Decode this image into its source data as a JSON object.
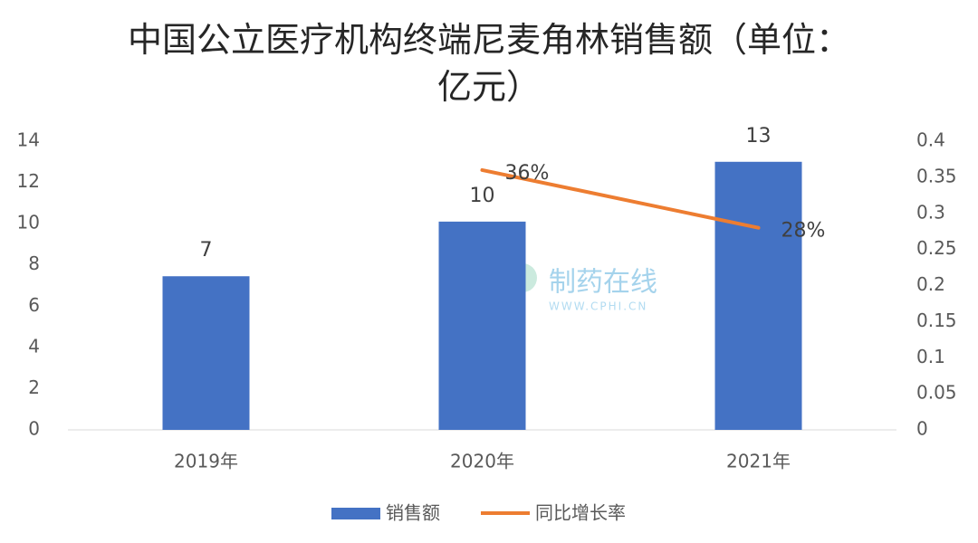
{
  "chart_data": {
    "type": "bar_line",
    "title": "中国公立医疗机构终端尼麦角林销售额（单位：亿元）",
    "categories": [
      "2019年",
      "2020年",
      "2021年"
    ],
    "series": [
      {
        "name": "销售额",
        "type": "bar",
        "color": "#4472c4",
        "values": [
          7.45,
          10.1,
          13
        ],
        "value_labels": [
          "7",
          "10",
          "13"
        ]
      },
      {
        "name": "同比增长率",
        "type": "line",
        "axis": "y2",
        "color": "#ed7d31",
        "values": [
          null,
          0.36,
          0.28
        ],
        "value_labels": [
          null,
          "36%",
          "28%"
        ]
      }
    ],
    "ylim": [
      0,
      14
    ],
    "yticks": [
      0,
      2,
      4,
      6,
      8,
      10,
      12,
      14
    ],
    "y2lim": [
      0,
      0.4
    ],
    "y2ticks": [
      0,
      0.05,
      0.1,
      0.15,
      0.2,
      0.25,
      0.3,
      0.35,
      0.4
    ],
    "grid": false,
    "legend": "bottom",
    "watermark": {
      "text": "制药在线",
      "url": "WWW.CPHI.CN"
    }
  }
}
